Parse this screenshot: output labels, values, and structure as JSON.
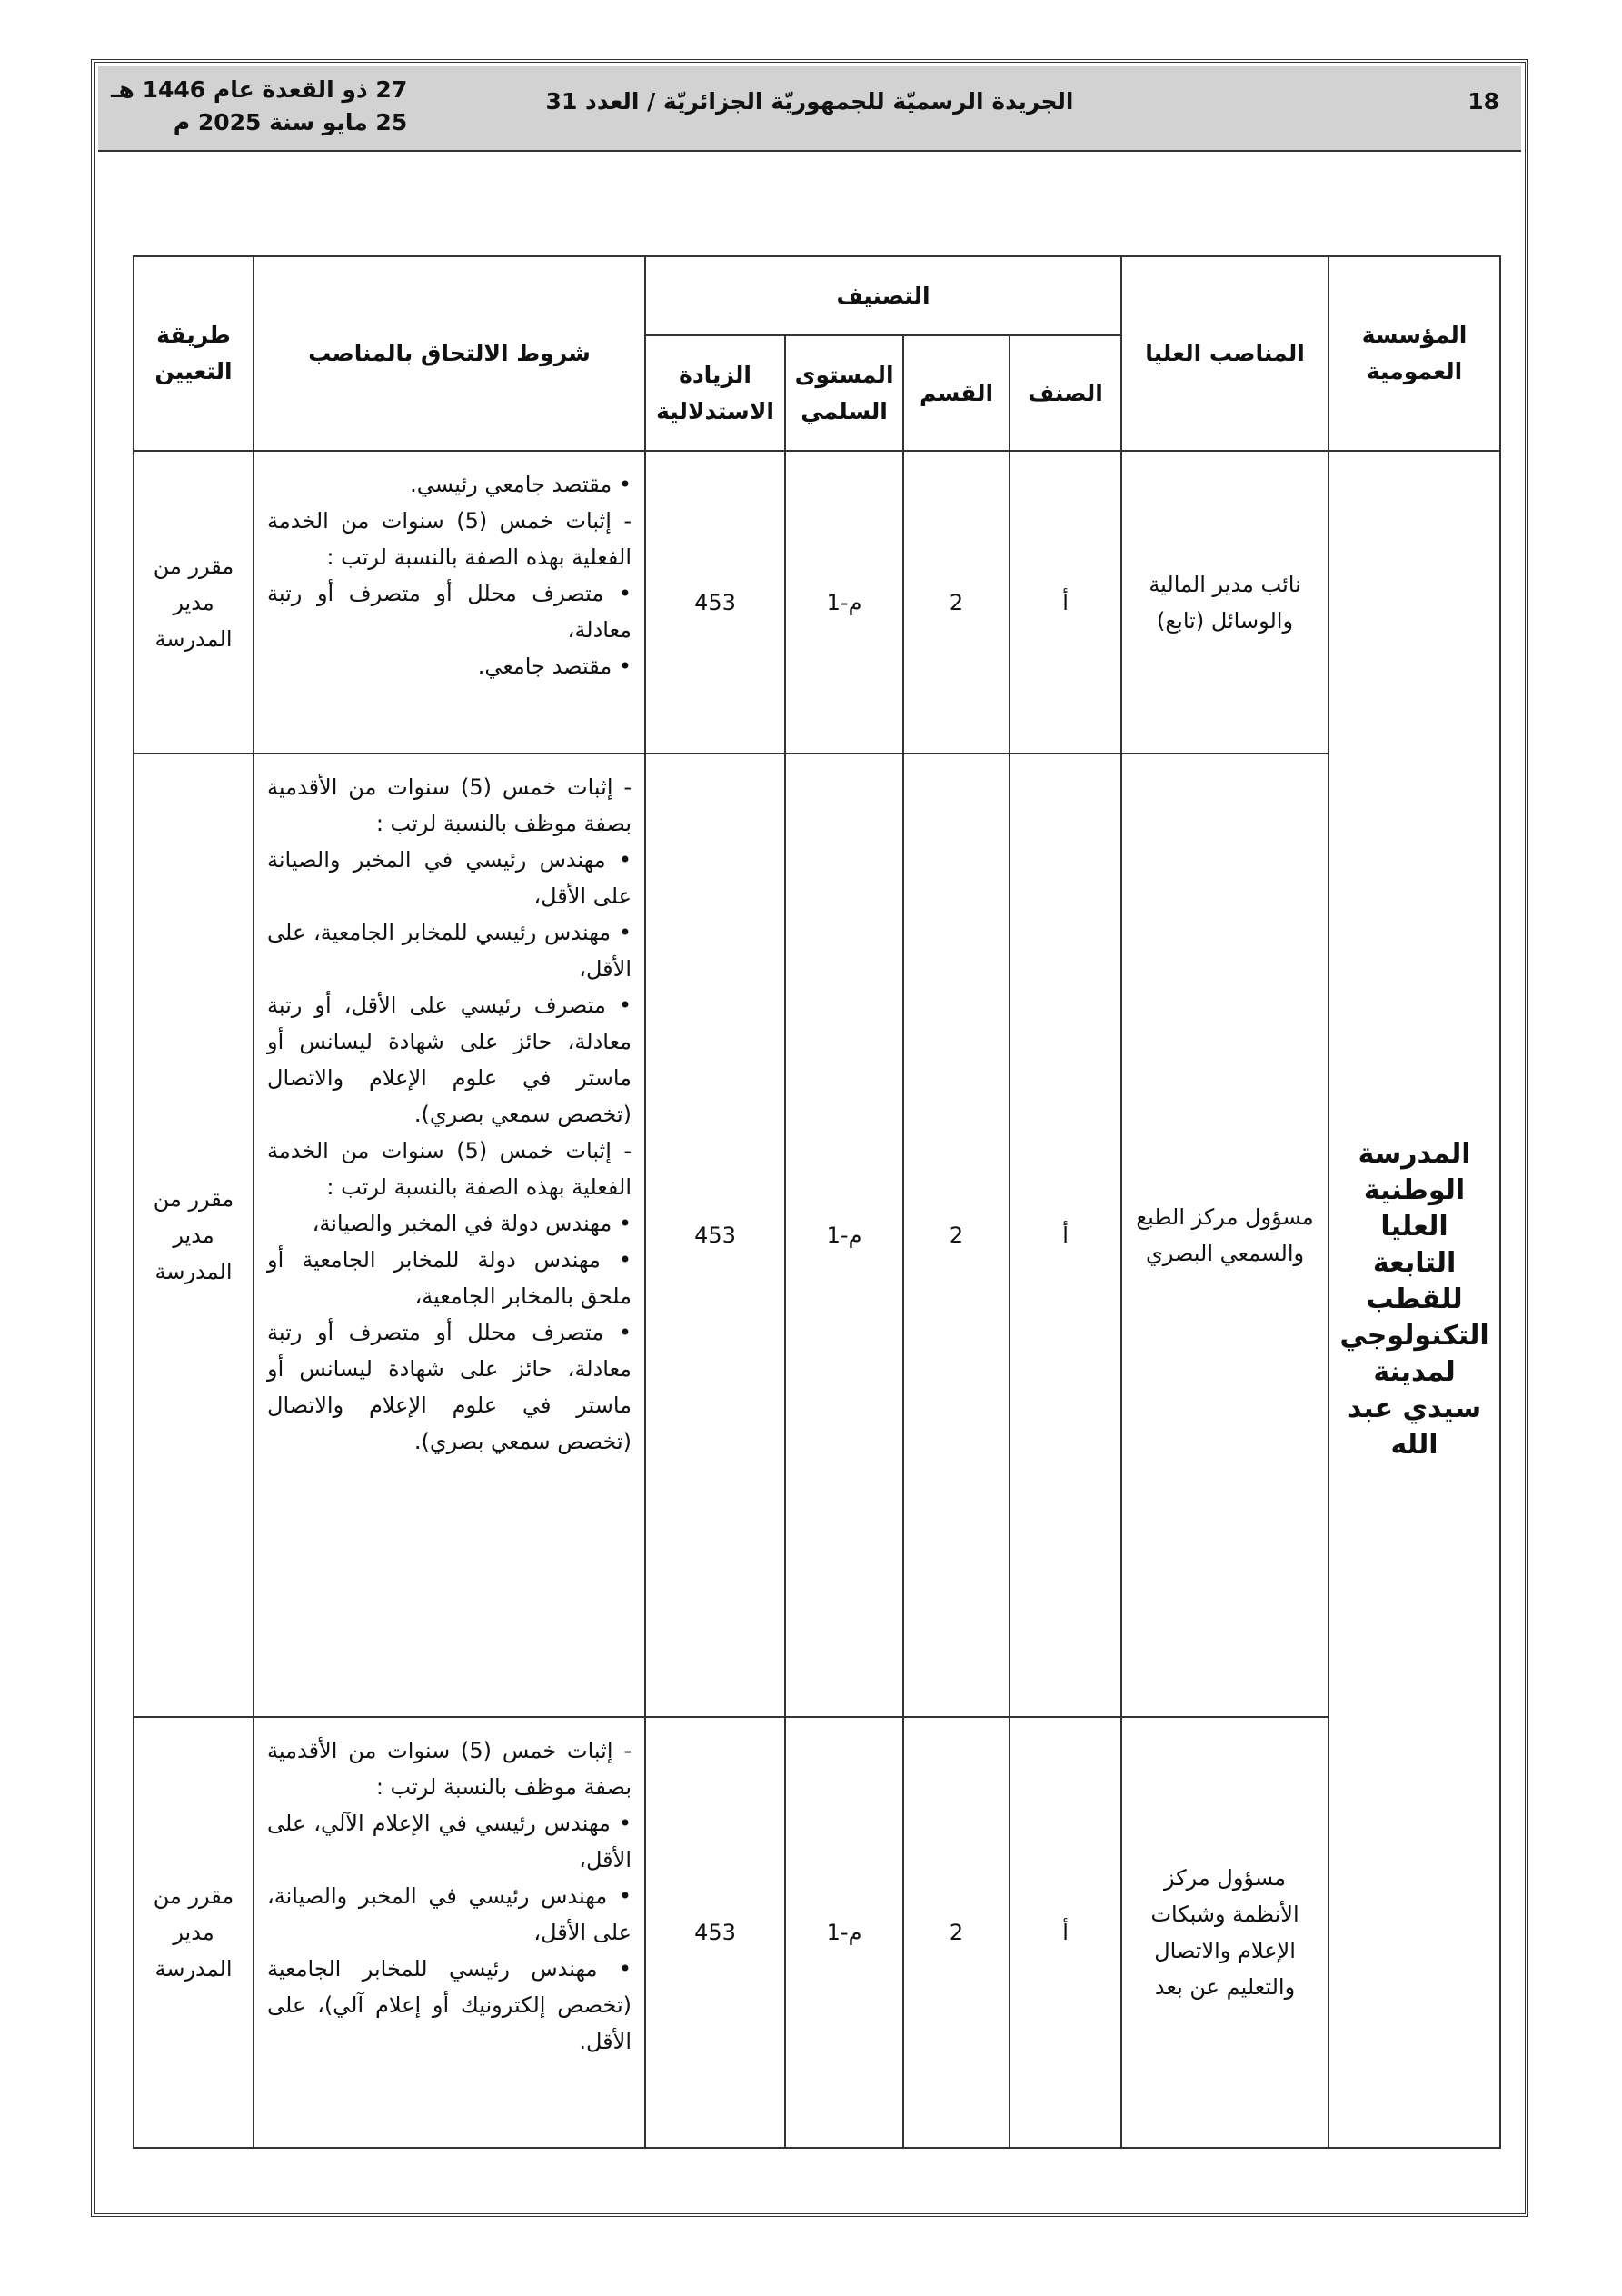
{
  "header": {
    "page_number": "18",
    "title": "الجريدة الرسميّة للجمهوريّة الجزائريّة / العدد 31",
    "date_hijri": "27 ذو القعدة عام 1446 هـ",
    "date_gregorian": "25 مايو سنة 2025 م"
  },
  "table": {
    "headers": {
      "institution": "المؤسسة العمومية",
      "positions": "المناصب العليا",
      "classification": "التصنيف",
      "class": "الصنف",
      "category": "القسم",
      "level": "المستوى السلمي",
      "index": "الزيادة الاستدلالية",
      "conditions": "شروط الالتحاق بالمناصب",
      "method": "طريقة التعيين"
    },
    "institution": "المدرسة الوطنية العليا التابعة للقطب التكنولوجي لمدينة سيدي عبد الله",
    "rows": [
      {
        "position": "نائب مدير المالية والوسائل (تابع)",
        "class": "أ",
        "category": "2",
        "level": "م-1",
        "index": "453",
        "conditions": [
          "• مقتصد جامعي رئيسي.",
          "- إثبات خمس (5) سنوات من الخدمة الفعلية بهذه الصفة بالنسبة لرتب :",
          "• متصرف محلل أو متصرف أو رتبة معادلة،",
          "• مقتصد جامعي."
        ],
        "method": "مقرر من مدير المدرسة"
      },
      {
        "position": "مسؤول مركز الطبع والسمعي البصري",
        "class": "أ",
        "category": "2",
        "level": "م-1",
        "index": "453",
        "conditions": [
          "- إثبات خمس (5) سنوات من الأقدمية بصفة موظف بالنسبة لرتب :",
          "• مهندس رئيسي في المخبر والصيانة على الأقل،",
          "• مهندس رئيسي للمخابر الجامعية، على الأقل،",
          "• متصرف رئيسي على الأقل، أو رتبة معادلة، حائز على شهادة ليسانس أو ماستر في علوم الإعلام والاتصال (تخصص سمعي بصري).",
          "- إثبات خمس (5) سنوات من الخدمة الفعلية بهذه الصفة بالنسبة لرتب :",
          "• مهندس دولة في المخبر والصيانة،",
          "• مهندس دولة للمخابر الجامعية أو ملحق بالمخابر الجامعية،",
          "• متصرف محلل أو متصرف أو رتبة معادلة، حائز على شهادة ليسانس أو ماستر في علوم الإعلام والاتصال (تخصص سمعي بصري)."
        ],
        "method": "مقرر من مدير المدرسة"
      },
      {
        "position": "مسؤول مركز الأنظمة وشبكات الإعلام والاتصال والتعليم عن بعد",
        "class": "أ",
        "category": "2",
        "level": "م-1",
        "index": "453",
        "conditions": [
          "- إثبات خمس (5) سنوات من الأقدمية بصفة موظف بالنسبة لرتب :",
          "• مهندس رئيسي في الإعلام الآلي، على الأقل،",
          "• مهندس رئيسي في المخبر والصيانة، على الأقل،",
          "• مهندس رئيسي للمخابر الجامعية (تخصص إلكترونيك أو إعلام آلي)، على الأقل."
        ],
        "method": "مقرر من مدير المدرسة"
      }
    ]
  }
}
